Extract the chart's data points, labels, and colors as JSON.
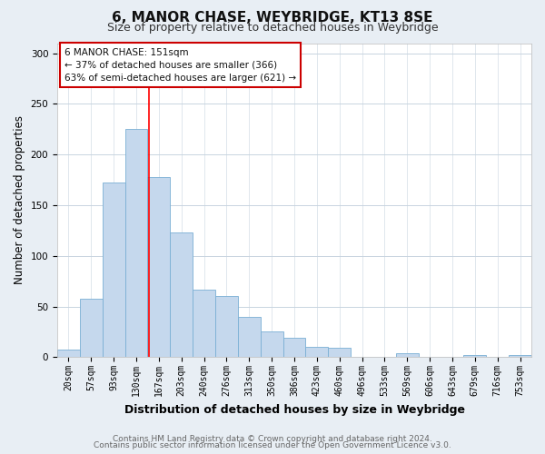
{
  "title": "6, MANOR CHASE, WEYBRIDGE, KT13 8SE",
  "subtitle": "Size of property relative to detached houses in Weybridge",
  "xlabel": "Distribution of detached houses by size in Weybridge",
  "ylabel": "Number of detached properties",
  "categories": [
    "20sqm",
    "57sqm",
    "93sqm",
    "130sqm",
    "167sqm",
    "203sqm",
    "240sqm",
    "276sqm",
    "313sqm",
    "350sqm",
    "386sqm",
    "423sqm",
    "460sqm",
    "496sqm",
    "533sqm",
    "569sqm",
    "606sqm",
    "643sqm",
    "679sqm",
    "716sqm",
    "753sqm"
  ],
  "values": [
    7,
    58,
    172,
    225,
    178,
    123,
    67,
    60,
    40,
    25,
    19,
    10,
    9,
    0,
    0,
    4,
    0,
    0,
    2,
    0,
    2
  ],
  "bar_color": "#c5d8ed",
  "bar_edge_color": "#7aafd4",
  "annotation_text_lines": [
    "6 MANOR CHASE: 151sqm",
    "← 37% of detached houses are smaller (366)",
    "63% of semi-detached houses are larger (621) →"
  ],
  "annotation_box_facecolor": "#ffffff",
  "annotation_box_edgecolor": "#cc0000",
  "red_line_x": 3.57,
  "footer_line1": "Contains HM Land Registry data © Crown copyright and database right 2024.",
  "footer_line2": "Contains public sector information licensed under the Open Government Licence v3.0.",
  "ylim": [
    0,
    310
  ],
  "yticks": [
    0,
    50,
    100,
    150,
    200,
    250,
    300
  ],
  "fig_background": "#e8eef4",
  "plot_background": "#ffffff",
  "grid_color": "#c8d4e0",
  "title_fontsize": 11,
  "subtitle_fontsize": 9,
  "ylabel_fontsize": 8.5,
  "xlabel_fontsize": 9,
  "tick_fontsize": 7,
  "annotation_fontsize": 7.5,
  "footer_fontsize": 6.5
}
